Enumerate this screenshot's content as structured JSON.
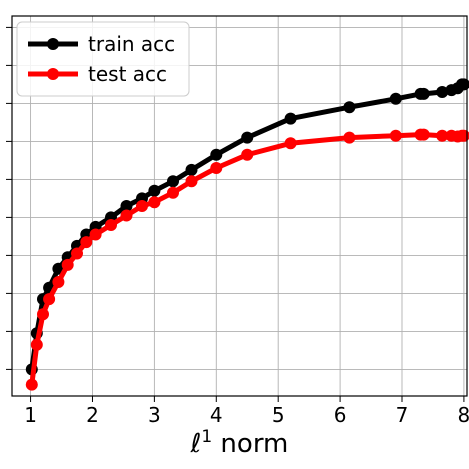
{
  "chart_data": {
    "type": "line",
    "xlabel_base": "ℓ",
    "xlabel_sup": "1",
    "xlabel_rest": " norm",
    "ylabel": "",
    "xlim": [
      0.7,
      8.05
    ],
    "ylim": [
      0,
      1
    ],
    "x_ticks": [
      1,
      2,
      3,
      4,
      5,
      6,
      7,
      8
    ],
    "x_tick_labels": [
      "1",
      "2",
      "3",
      "4",
      "5",
      "6",
      "7",
      "8"
    ],
    "y_ticks": [
      0.07,
      0.17,
      0.27,
      0.37,
      0.47,
      0.57,
      0.67,
      0.77,
      0.87,
      0.97
    ],
    "grid": true,
    "legend_position": "top-left",
    "series": [
      {
        "name": "train acc",
        "color": "#000000",
        "x": [
          1.02,
          1.1,
          1.2,
          1.3,
          1.45,
          1.6,
          1.75,
          1.9,
          2.05,
          2.3,
          2.55,
          2.8,
          3.0,
          3.3,
          3.6,
          4.0,
          4.5,
          5.2,
          6.15,
          6.9,
          7.3,
          7.35,
          7.65,
          7.8,
          7.9,
          7.97,
          8.0
        ],
        "y": [
          0.07,
          0.165,
          0.255,
          0.285,
          0.335,
          0.365,
          0.395,
          0.425,
          0.445,
          0.47,
          0.5,
          0.52,
          0.54,
          0.565,
          0.595,
          0.635,
          0.68,
          0.73,
          0.76,
          0.782,
          0.795,
          0.795,
          0.8,
          0.805,
          0.81,
          0.82,
          0.82
        ]
      },
      {
        "name": "test acc",
        "color": "#ff0000",
        "x": [
          1.02,
          1.1,
          1.2,
          1.3,
          1.45,
          1.6,
          1.75,
          1.9,
          2.05,
          2.3,
          2.55,
          2.8,
          3.0,
          3.3,
          3.6,
          4.0,
          4.5,
          5.2,
          6.15,
          6.9,
          7.3,
          7.35,
          7.65,
          7.8,
          7.9,
          7.97,
          8.0
        ],
        "y": [
          0.03,
          0.135,
          0.215,
          0.255,
          0.3,
          0.345,
          0.375,
          0.405,
          0.425,
          0.45,
          0.475,
          0.5,
          0.51,
          0.535,
          0.565,
          0.6,
          0.635,
          0.665,
          0.68,
          0.685,
          0.688,
          0.688,
          0.685,
          0.685,
          0.683,
          0.685,
          0.685
        ]
      }
    ]
  }
}
